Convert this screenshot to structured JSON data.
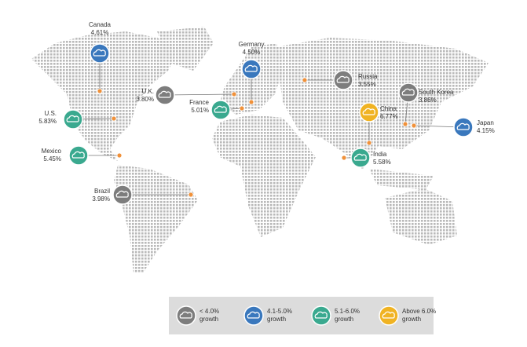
{
  "countries": [
    {
      "name": "Canada",
      "growth": "4.61%",
      "color": "#3a78bd"
    },
    {
      "name": "Germany",
      "growth": "4.50%",
      "color": "#3a78bd"
    },
    {
      "name": "U.K.",
      "growth": "3.80%",
      "color": "#7d7d7d"
    },
    {
      "name": "France",
      "growth": "5.01%",
      "color": "#3aa98f"
    },
    {
      "name": "Russia",
      "growth": "3.55%",
      "color": "#7d7d7d"
    },
    {
      "name": "South Korea",
      "growth": "3.86%",
      "color": "#7d7d7d"
    },
    {
      "name": "China",
      "growth": "6.77%",
      "color": "#f0b323"
    },
    {
      "name": "Japan",
      "growth": "4.15%",
      "color": "#3a78bd"
    },
    {
      "name": "U.S.",
      "growth": "5.83%",
      "color": "#3aa98f"
    },
    {
      "name": "Mexico",
      "growth": "5.45%",
      "color": "#3aa98f"
    },
    {
      "name": "India",
      "growth": "5.58%",
      "color": "#3aa98f"
    },
    {
      "name": "Brazil",
      "growth": "3.98%",
      "color": "#7d7d7d"
    }
  ],
  "legend": [
    {
      "label": "< 4.0%",
      "sub": "growth",
      "color": "#7d7d7d"
    },
    {
      "label": "4.1-5.0%",
      "sub": "growth",
      "color": "#3a78bd"
    },
    {
      "label": "5.1-6.0%",
      "sub": "growth",
      "color": "#3aa98f"
    },
    {
      "label": "Above 6.0%",
      "sub": "growth",
      "color": "#f0b323"
    }
  ]
}
